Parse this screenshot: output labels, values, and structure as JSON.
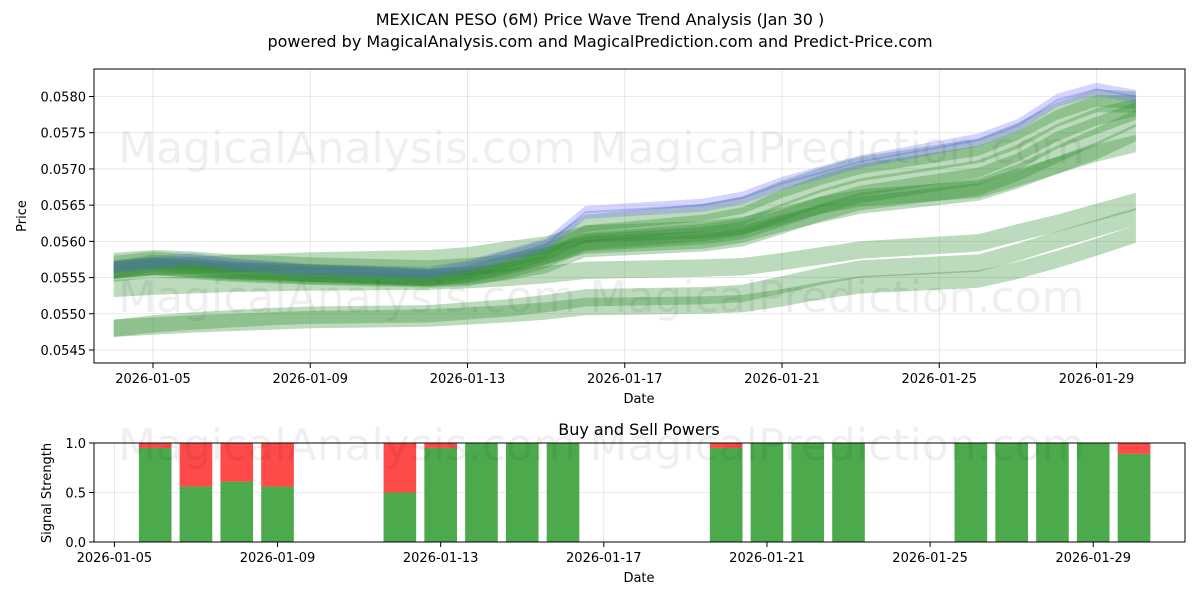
{
  "title_line1": "MEXICAN PESO (6M) Price Wave Trend Analysis (Jan 30 )",
  "title_line2": "powered by MagicalAnalysis.com and MagicalPrediction.com and Predict-Price.com",
  "watermarks": [
    "MagicalAnalysis.com",
    "MagicalPrediction.com"
  ],
  "colors": {
    "green": "#2e8b2e",
    "blue": "#6464ff",
    "buy": "#4caa4c",
    "sell": "#ff4a4a"
  },
  "chart_data": [
    {
      "type": "line",
      "title": "",
      "xlabel": "Date",
      "ylabel": "Price",
      "x_range": [
        "2026-01-03T12:00",
        "2026-01-31T06:00"
      ],
      "ylim": [
        0.05432,
        0.05838
      ],
      "x_ticks": [
        "2026-01-05",
        "2026-01-09",
        "2026-01-13",
        "2026-01-17",
        "2026-01-21",
        "2026-01-25",
        "2026-01-29"
      ],
      "y_ticks": [
        "0.0545",
        "0.0550",
        "0.0555",
        "0.0560",
        "0.0565",
        "0.0570",
        "0.0575",
        "0.0580"
      ],
      "x_dates": [
        "2026-01-04",
        "2026-01-05",
        "2026-01-06",
        "2026-01-07",
        "2026-01-08",
        "2026-01-09",
        "2026-01-12",
        "2026-01-13",
        "2026-01-14",
        "2026-01-15",
        "2026-01-16",
        "2026-01-19",
        "2026-01-20",
        "2026-01-21",
        "2026-01-22",
        "2026-01-23",
        "2026-01-26",
        "2026-01-27",
        "2026-01-28",
        "2026-01-29",
        "2026-01-30"
      ],
      "price_series": {
        "name": "Price",
        "values": [
          0.05565,
          0.0557,
          0.05575,
          0.05568,
          0.05564,
          0.0556,
          0.05556,
          0.05565,
          0.0558,
          0.05595,
          0.0564,
          0.0565,
          0.0566,
          0.0568,
          0.05695,
          0.0571,
          0.0574,
          0.0576,
          0.05795,
          0.0581,
          0.058
        ]
      },
      "wave_bands": [
        {
          "name": "Wave 1",
          "values": [
            0.0556,
            0.0557,
            0.05566,
            0.0556,
            0.05558,
            0.05556,
            0.05552,
            0.0556,
            0.05575,
            0.0559,
            0.05625,
            0.0564,
            0.0565,
            0.05672,
            0.0569,
            0.05705,
            0.0573,
            0.05752,
            0.0578,
            0.05798,
            0.05795
          ]
        },
        {
          "name": "Wave 2",
          "values": [
            0.05562,
            0.05566,
            0.05562,
            0.05558,
            0.05556,
            0.05553,
            0.0555,
            0.05556,
            0.05568,
            0.05585,
            0.0561,
            0.05625,
            0.05635,
            0.0566,
            0.0568,
            0.05695,
            0.0572,
            0.0574,
            0.0577,
            0.0579,
            0.0579
          ]
        },
        {
          "name": "Wave 3",
          "values": [
            0.05568,
            0.05574,
            0.0557,
            0.05564,
            0.0556,
            0.05556,
            0.0555,
            0.05554,
            0.05565,
            0.0558,
            0.056,
            0.05612,
            0.0562,
            0.0564,
            0.0566,
            0.05675,
            0.057,
            0.05722,
            0.0575,
            0.05772,
            0.05785
          ]
        },
        {
          "name": "Wave 4",
          "values": [
            0.05556,
            0.05562,
            0.0556,
            0.05556,
            0.05554,
            0.05552,
            0.05548,
            0.0555,
            0.0556,
            0.05575,
            0.05598,
            0.05608,
            0.05615,
            0.05632,
            0.0565,
            0.05665,
            0.0569,
            0.0571,
            0.0574,
            0.0576,
            0.0578
          ]
        },
        {
          "name": "Wave 5",
          "values": [
            0.0556,
            0.05565,
            0.05563,
            0.0556,
            0.05558,
            0.05556,
            0.0555,
            0.05552,
            0.05558,
            0.05568,
            0.0559,
            0.05598,
            0.05605,
            0.05622,
            0.0564,
            0.05655,
            0.05675,
            0.05695,
            0.0572,
            0.05745,
            0.0577
          ]
        },
        {
          "name": "Wave 6",
          "values": [
            0.05572,
            0.05576,
            0.05574,
            0.0557,
            0.05568,
            0.05566,
            0.05562,
            0.05565,
            0.0557,
            0.0558,
            0.05595,
            0.05602,
            0.0561,
            0.05625,
            0.05638,
            0.0565,
            0.05668,
            0.05685,
            0.05705,
            0.05725,
            0.0575
          ]
        },
        {
          "name": "Wave 7",
          "values": [
            0.0556,
            0.05565,
            0.05567,
            0.05569,
            0.05571,
            0.05573,
            0.05576,
            0.0558,
            0.05588,
            0.05595,
            0.0561,
            0.05616,
            0.05622,
            0.05635,
            0.0565,
            0.0566,
            0.05672,
            0.05688,
            0.05705,
            0.05722,
            0.05735
          ]
        },
        {
          "name": "Wave 8",
          "values": [
            0.05535,
            0.05538,
            0.0554,
            0.05542,
            0.05543,
            0.05544,
            0.05545,
            0.05547,
            0.0555,
            0.05554,
            0.0556,
            0.05563,
            0.05565,
            0.05572,
            0.0558,
            0.05588,
            0.05598,
            0.05612,
            0.05625,
            0.0564,
            0.05655
          ]
        },
        {
          "name": "Wave 9",
          "values": [
            0.0548,
            0.05486,
            0.0549,
            0.05493,
            0.05496,
            0.05498,
            0.055,
            0.05504,
            0.05508,
            0.05514,
            0.05522,
            0.05525,
            0.05528,
            0.0554,
            0.05552,
            0.05562,
            0.0557,
            0.05585,
            0.05602,
            0.05618,
            0.05634
          ]
        },
        {
          "name": "Wave 10",
          "values": [
            0.0548,
            0.05483,
            0.05486,
            0.05488,
            0.0549,
            0.05492,
            0.05494,
            0.05497,
            0.055,
            0.05504,
            0.0551,
            0.05512,
            0.05514,
            0.05522,
            0.05532,
            0.0554,
            0.05548,
            0.0556,
            0.05575,
            0.05592,
            0.0561
          ]
        }
      ]
    },
    {
      "type": "bar",
      "title": "Buy and Sell Powers",
      "xlabel": "Date",
      "ylabel": "Signal Strength",
      "x_range": [
        "2026-01-04T12:00",
        "2026-01-31T06:00"
      ],
      "ylim": [
        0,
        1
      ],
      "x_ticks": [
        "2026-01-05",
        "2026-01-09",
        "2026-01-13",
        "2026-01-17",
        "2026-01-21",
        "2026-01-25",
        "2026-01-29"
      ],
      "y_ticks": [
        "0.0",
        "0.5",
        "1.0"
      ],
      "categories": [
        "2026-01-06",
        "2026-01-07",
        "2026-01-08",
        "2026-01-09",
        "2026-01-12",
        "2026-01-13",
        "2026-01-14",
        "2026-01-15",
        "2026-01-16",
        "2026-01-20",
        "2026-01-21",
        "2026-01-22",
        "2026-01-23",
        "2026-01-26",
        "2026-01-27",
        "2026-01-28",
        "2026-01-29",
        "2026-01-30"
      ],
      "series": [
        {
          "name": "Buy",
          "values": [
            0.95,
            0.56,
            0.61,
            0.56,
            0.5,
            0.95,
            1.0,
            1.0,
            1.0,
            0.95,
            1.0,
            1.0,
            1.0,
            1.0,
            1.0,
            1.0,
            1.0,
            0.89
          ]
        },
        {
          "name": "Sell",
          "values": [
            0.05,
            0.44,
            0.39,
            0.44,
            0.5,
            0.05,
            0.0,
            0.0,
            0.0,
            0.05,
            0.0,
            0.0,
            0.0,
            0.0,
            0.0,
            0.0,
            0.0,
            0.11
          ]
        }
      ]
    }
  ]
}
